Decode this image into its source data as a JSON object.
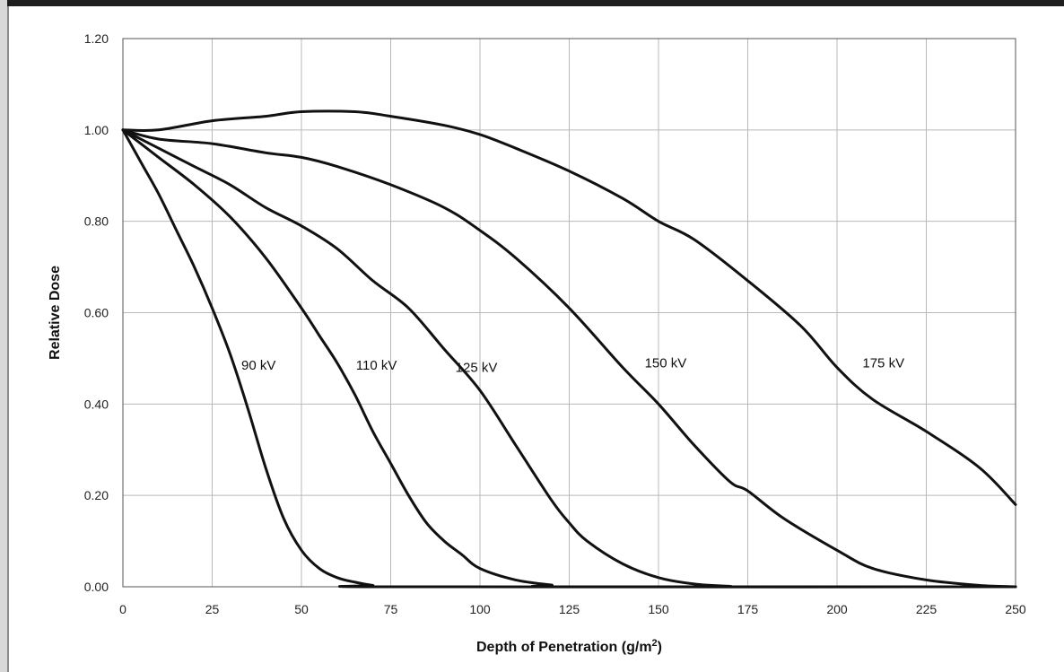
{
  "chart_data": {
    "type": "line",
    "xlabel": "Depth of Penetration (g/m",
    "xlabel_sup": "2",
    "xlabel_close": ")",
    "ylabel": "Relative Dose",
    "xlim": [
      0,
      250
    ],
    "ylim": [
      0,
      1.2
    ],
    "x_ticks": [
      0,
      25,
      50,
      75,
      100,
      125,
      150,
      175,
      200,
      225,
      250
    ],
    "y_ticks": [
      "0.00",
      "0.20",
      "0.40",
      "0.60",
      "0.80",
      "1.00",
      "1.20"
    ],
    "grid": true,
    "legend": "none",
    "series": [
      {
        "name": "90 kV",
        "points": [
          [
            0,
            1.0
          ],
          [
            5,
            0.93
          ],
          [
            10,
            0.86
          ],
          [
            15,
            0.78
          ],
          [
            20,
            0.7
          ],
          [
            25,
            0.61
          ],
          [
            30,
            0.51
          ],
          [
            35,
            0.39
          ],
          [
            40,
            0.26
          ],
          [
            45,
            0.15
          ],
          [
            50,
            0.08
          ],
          [
            55,
            0.04
          ],
          [
            60,
            0.02
          ],
          [
            65,
            0.01
          ],
          [
            70,
            0.003
          ],
          [
            75,
            0.0
          ],
          [
            250,
            0.0
          ]
        ]
      },
      {
        "name": "110 kV",
        "points": [
          [
            0,
            1.0
          ],
          [
            10,
            0.94
          ],
          [
            20,
            0.88
          ],
          [
            30,
            0.81
          ],
          [
            40,
            0.72
          ],
          [
            50,
            0.61
          ],
          [
            55,
            0.55
          ],
          [
            60,
            0.49
          ],
          [
            65,
            0.42
          ],
          [
            70,
            0.34
          ],
          [
            75,
            0.27
          ],
          [
            80,
            0.2
          ],
          [
            85,
            0.14
          ],
          [
            90,
            0.1
          ],
          [
            95,
            0.07
          ],
          [
            100,
            0.04
          ],
          [
            110,
            0.015
          ],
          [
            120,
            0.004
          ],
          [
            125,
            0.0
          ],
          [
            250,
            0.0
          ]
        ]
      },
      {
        "name": "125 kV",
        "points": [
          [
            0,
            1.0
          ],
          [
            10,
            0.96
          ],
          [
            20,
            0.92
          ],
          [
            30,
            0.88
          ],
          [
            40,
            0.83
          ],
          [
            50,
            0.79
          ],
          [
            60,
            0.74
          ],
          [
            70,
            0.67
          ],
          [
            80,
            0.61
          ],
          [
            90,
            0.52
          ],
          [
            100,
            0.43
          ],
          [
            110,
            0.31
          ],
          [
            120,
            0.19
          ],
          [
            125,
            0.14
          ],
          [
            130,
            0.1
          ],
          [
            140,
            0.05
          ],
          [
            150,
            0.02
          ],
          [
            160,
            0.006
          ],
          [
            170,
            0.001
          ],
          [
            175,
            0.0
          ],
          [
            250,
            0.0
          ]
        ]
      },
      {
        "name": "150 kV",
        "points": [
          [
            0,
            1.0
          ],
          [
            10,
            0.98
          ],
          [
            25,
            0.97
          ],
          [
            40,
            0.95
          ],
          [
            50,
            0.94
          ],
          [
            60,
            0.92
          ],
          [
            75,
            0.88
          ],
          [
            90,
            0.83
          ],
          [
            100,
            0.78
          ],
          [
            110,
            0.72
          ],
          [
            125,
            0.61
          ],
          [
            140,
            0.48
          ],
          [
            150,
            0.4
          ],
          [
            160,
            0.31
          ],
          [
            170,
            0.23
          ],
          [
            175,
            0.21
          ],
          [
            185,
            0.15
          ],
          [
            200,
            0.08
          ],
          [
            210,
            0.04
          ],
          [
            225,
            0.015
          ],
          [
            240,
            0.003
          ],
          [
            250,
            0.0
          ]
        ]
      },
      {
        "name": "175 kV",
        "points": [
          [
            0,
            1.0
          ],
          [
            10,
            1.0
          ],
          [
            25,
            1.02
          ],
          [
            40,
            1.03
          ],
          [
            50,
            1.04
          ],
          [
            65,
            1.04
          ],
          [
            75,
            1.03
          ],
          [
            90,
            1.01
          ],
          [
            100,
            0.99
          ],
          [
            110,
            0.96
          ],
          [
            125,
            0.91
          ],
          [
            140,
            0.85
          ],
          [
            150,
            0.8
          ],
          [
            160,
            0.76
          ],
          [
            175,
            0.67
          ],
          [
            190,
            0.57
          ],
          [
            200,
            0.48
          ],
          [
            210,
            0.41
          ],
          [
            225,
            0.34
          ],
          [
            240,
            0.26
          ],
          [
            250,
            0.18
          ]
        ]
      }
    ],
    "labels": [
      {
        "series": "90 kV",
        "text": "90 kV",
        "x": 38,
        "y": 0.475
      },
      {
        "series": "110 kV",
        "text": "110 kV",
        "x": 71,
        "y": 0.475
      },
      {
        "series": "125 kV",
        "text": "125 kV",
        "x": 99,
        "y": 0.47
      },
      {
        "series": "150 kV",
        "text": "150 kV",
        "x": 152,
        "y": 0.48
      },
      {
        "series": "175 kV",
        "text": "175 kV",
        "x": 213,
        "y": 0.48
      }
    ]
  }
}
